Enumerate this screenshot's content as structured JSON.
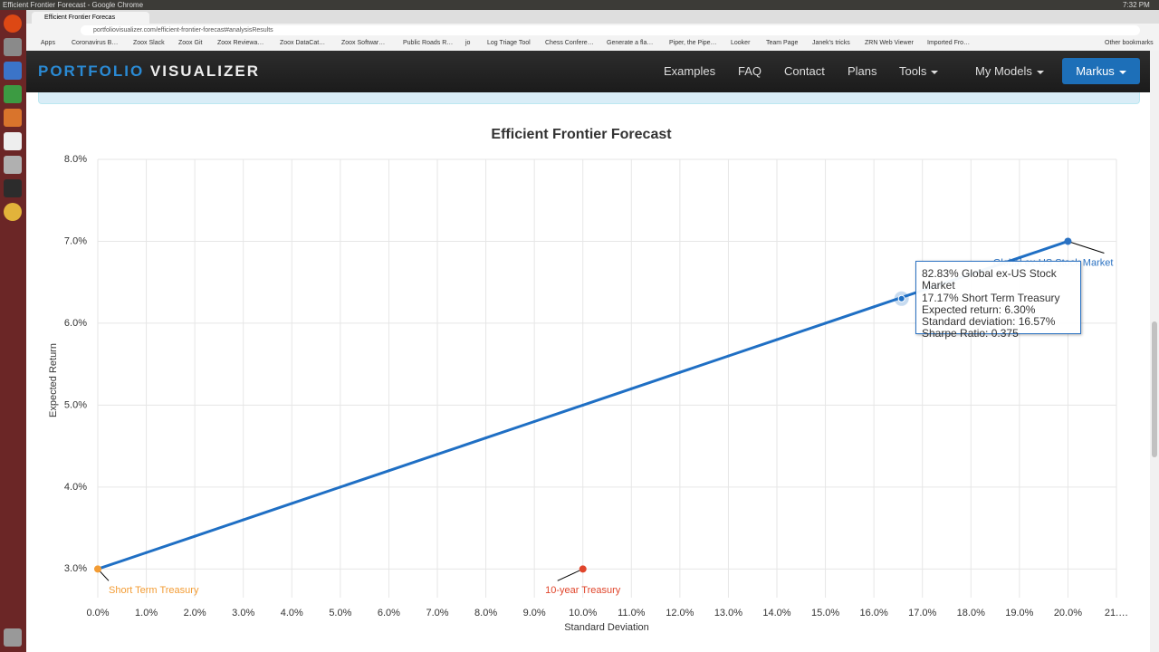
{
  "window": {
    "title": "Efficient Frontier Forecast - Google Chrome",
    "time": "7:32 PM"
  },
  "browser": {
    "tab": "Efficient Frontier Forecas",
    "url": "portfoliovisualizer.com/efficient-frontier-forecast#analysisResults",
    "bookmarks": [
      "Apps",
      "Coronavirus B…",
      "Zoox Slack",
      "Zoox Git",
      "Zoox Reviewa…",
      "Zoox DataCat…",
      "Zoox Softwar…",
      "Public Roads R…",
      "jo",
      "Log Triage Tool",
      "Chess Confere…",
      "Generate a fla…",
      "Piper, the Pipe…",
      "Looker",
      "Team Page",
      "Janek's tricks",
      "ZRN Web Viewer",
      "Imported Fro…"
    ],
    "other_bookmarks": "Other bookmarks"
  },
  "nav": {
    "brand_first": "PORTFOLIO",
    "brand_second": "VISUALIZER",
    "links": [
      "Examples",
      "FAQ",
      "Contact",
      "Plans",
      "Tools",
      "My Models"
    ],
    "user": "Markus"
  },
  "chart_data": {
    "type": "line",
    "title": "Efficient Frontier Forecast",
    "x_label": "Standard Deviation",
    "y_label": "Expected Return",
    "xlim": [
      0,
      21
    ],
    "ylim": [
      2.65,
      8
    ],
    "xticks": [
      {
        "value": 0,
        "label": "0.0%"
      },
      {
        "value": 1,
        "label": "1.0%"
      },
      {
        "value": 2,
        "label": "2.0%"
      },
      {
        "value": 3,
        "label": "3.0%"
      },
      {
        "value": 4,
        "label": "4.0%"
      },
      {
        "value": 5,
        "label": "5.0%"
      },
      {
        "value": 6,
        "label": "6.0%"
      },
      {
        "value": 7,
        "label": "7.0%"
      },
      {
        "value": 8,
        "label": "8.0%"
      },
      {
        "value": 9,
        "label": "9.0%"
      },
      {
        "value": 10,
        "label": "10.0%"
      },
      {
        "value": 11,
        "label": "11.0%"
      },
      {
        "value": 12,
        "label": "12.0%"
      },
      {
        "value": 13,
        "label": "13.0%"
      },
      {
        "value": 14,
        "label": "14.0%"
      },
      {
        "value": 15,
        "label": "15.0%"
      },
      {
        "value": 16,
        "label": "16.0%"
      },
      {
        "value": 17,
        "label": "17.0%"
      },
      {
        "value": 18,
        "label": "18.0%"
      },
      {
        "value": 19,
        "label": "19.0%"
      },
      {
        "value": 20,
        "label": "20.0%"
      },
      {
        "value": 21,
        "label": "21.…"
      }
    ],
    "yticks": [
      {
        "value": 3,
        "label": "3.0%"
      },
      {
        "value": 4,
        "label": "4.0%"
      },
      {
        "value": 5,
        "label": "5.0%"
      },
      {
        "value": 6,
        "label": "6.0%"
      },
      {
        "value": 7,
        "label": "7.0%"
      },
      {
        "value": 8,
        "label": "8.0%"
      }
    ],
    "grid": true,
    "frontier": {
      "color": "#1f6fc4",
      "x": [
        0,
        1,
        2,
        3,
        4,
        5,
        6,
        7,
        8,
        9,
        10,
        11,
        12,
        13,
        14,
        15,
        16,
        17,
        18,
        19,
        20
      ],
      "values": [
        3.0,
        3.2,
        3.4,
        3.6,
        3.8,
        4.0,
        4.2,
        4.4,
        4.6,
        4.8,
        5.0,
        5.2,
        5.4,
        5.6,
        5.8,
        6.0,
        6.2,
        6.4,
        6.6,
        6.8,
        7.0
      ]
    },
    "series": [
      {
        "name": "Short Term Treasury",
        "color": "#f39c34",
        "x": [
          0
        ],
        "values": [
          3.0
        ]
      },
      {
        "name": "10-year Treasury",
        "color": "#e0452b",
        "x": [
          10
        ],
        "values": [
          3.0
        ]
      },
      {
        "name": "Global ex-US Stock Market",
        "color": "#2b72c2",
        "x": [
          20
        ],
        "values": [
          7.0
        ]
      }
    ],
    "tooltip": {
      "x": 16.57,
      "y": 6.3,
      "lines": [
        "82.83% Global ex-US Stock Market",
        "17.17% Short Term Treasury",
        "Expected return: 6.30%",
        "Standard deviation: 16.57%",
        "Sharpe Ratio: 0.375"
      ]
    }
  }
}
